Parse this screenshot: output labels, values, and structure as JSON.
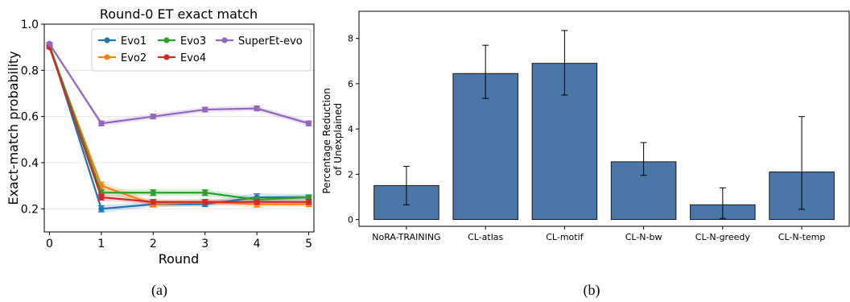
{
  "chart_data": [
    {
      "type": "line",
      "title": "Round-0 ET exact match",
      "xlabel": "Round",
      "ylabel": "Exact-match probability",
      "xlim": [
        -0.1,
        5.1
      ],
      "ylim": [
        0.1,
        1.0
      ],
      "x": [
        0,
        1,
        2,
        3,
        4,
        5
      ],
      "xticks": [
        "0",
        "1",
        "2",
        "3",
        "4",
        "5"
      ],
      "yticks": [
        "0.2",
        "0.4",
        "0.6",
        "0.8",
        "1.0"
      ],
      "grid": true,
      "legend_placement": "top-right",
      "series": [
        {
          "name": "Evo1",
          "color": "#1f77b4",
          "values": [
            0.91,
            0.2,
            0.22,
            0.22,
            0.25,
            0.25
          ],
          "err": [
            0.005,
            0.013,
            0.01,
            0.01,
            0.015,
            0.01
          ]
        },
        {
          "name": "Evo2",
          "color": "#ff7f0e",
          "values": [
            0.9,
            0.3,
            0.22,
            0.23,
            0.22,
            0.22
          ],
          "err": [
            0.005,
            0.015,
            0.012,
            0.01,
            0.012,
            0.01
          ]
        },
        {
          "name": "Evo3",
          "color": "#2ca02c",
          "values": [
            0.91,
            0.27,
            0.27,
            0.27,
            0.24,
            0.25
          ],
          "err": [
            0.005,
            0.012,
            0.012,
            0.012,
            0.01,
            0.01
          ]
        },
        {
          "name": "Evo4",
          "color": "#d62728",
          "values": [
            0.9,
            0.25,
            0.23,
            0.23,
            0.23,
            0.23
          ],
          "err": [
            0.005,
            0.012,
            0.01,
            0.01,
            0.01,
            0.01
          ]
        },
        {
          "name": "SuperEt-evo",
          "color": "#9467bd",
          "values": [
            0.915,
            0.57,
            0.6,
            0.63,
            0.635,
            0.57
          ],
          "err": [
            0.005,
            0.01,
            0.01,
            0.01,
            0.01,
            0.01
          ]
        }
      ],
      "panel_label": "(a)"
    },
    {
      "type": "bar",
      "categories": [
        "NoRA-TRAINING",
        "CL-atlas",
        "CL-motif",
        "CL-N-bw",
        "CL-N-greedy",
        "CL-N-temp"
      ],
      "values": [
        1.5,
        6.45,
        6.9,
        2.55,
        0.65,
        2.1
      ],
      "err_low": [
        0.65,
        5.35,
        5.5,
        1.95,
        0.05,
        0.45
      ],
      "err_high": [
        2.35,
        7.7,
        8.35,
        3.4,
        1.4,
        4.55
      ],
      "ylabel": "Percentage Reduction\nof Unexplained",
      "ylim": [
        -0.3,
        9.2
      ],
      "yticks": [
        "0",
        "2",
        "4",
        "6",
        "8"
      ],
      "bar_color": "#4a76a8",
      "panel_label": "(b)"
    }
  ]
}
